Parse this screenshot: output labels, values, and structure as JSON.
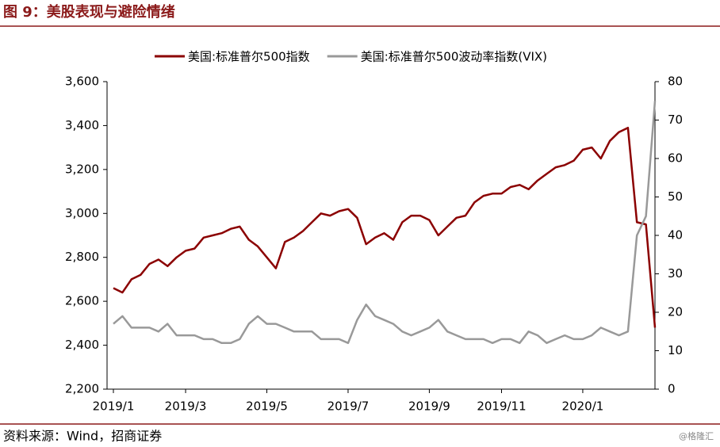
{
  "chart_data": {
    "type": "line",
    "title": "图 9：美股表现与避险情绪",
    "source": "资料来源：Wind，招商证券",
    "watermark": "@格隆汇",
    "categories": [
      "2019/1",
      null,
      null,
      null,
      null,
      null,
      null,
      null,
      "2019/3",
      null,
      null,
      null,
      null,
      null,
      null,
      null,
      null,
      "2019/5",
      null,
      null,
      null,
      null,
      null,
      null,
      null,
      null,
      "2019/7",
      null,
      null,
      null,
      null,
      null,
      null,
      null,
      null,
      "2019/9",
      null,
      null,
      null,
      null,
      null,
      null,
      null,
      "2019/11",
      null,
      null,
      null,
      null,
      null,
      null,
      null,
      null,
      "2020/1",
      null,
      null,
      null,
      null,
      null,
      null,
      null,
      null
    ],
    "series": [
      {
        "name": "美国:标准普尔500指数",
        "color": "#8b0000",
        "values": [
          2660,
          2640,
          2700,
          2720,
          2770,
          2790,
          2760,
          2800,
          2830,
          2840,
          2890,
          2900,
          2910,
          2930,
          2940,
          2880,
          2850,
          2800,
          2750,
          2870,
          2890,
          2920,
          2960,
          3000,
          2990,
          3010,
          3020,
          2980,
          2860,
          2890,
          2910,
          2880,
          2960,
          2990,
          2990,
          2970,
          2900,
          2940,
          2980,
          2990,
          3050,
          3080,
          3090,
          3090,
          3120,
          3130,
          3110,
          3150,
          3180,
          3210,
          3220,
          3240,
          3290,
          3300,
          3250,
          3330,
          3370,
          3390,
          2960,
          2950,
          2480
        ]
      },
      {
        "name": "美国:标准普尔500波动率指数(VIX)",
        "color": "#999999",
        "axis": "y2",
        "values": [
          17,
          19,
          16,
          16,
          16,
          15,
          17,
          14,
          14,
          14,
          13,
          13,
          12,
          12,
          13,
          17,
          19,
          17,
          17,
          16,
          15,
          15,
          15,
          13,
          13,
          13,
          12,
          18,
          22,
          19,
          18,
          17,
          15,
          14,
          15,
          16,
          18,
          15,
          14,
          13,
          13,
          13,
          12,
          13,
          13,
          12,
          15,
          14,
          12,
          13,
          14,
          13,
          13,
          14,
          16,
          15,
          14,
          15,
          40,
          45,
          75
        ]
      }
    ],
    "ylim": [
      2200,
      3600
    ],
    "yticks": [
      {
        "value": 2200,
        "label": "2,200"
      },
      {
        "value": 2400,
        "label": "2,400"
      },
      {
        "value": 2600,
        "label": "2,600"
      },
      {
        "value": 2800,
        "label": "2,800"
      },
      {
        "value": 3000,
        "label": "3,000"
      },
      {
        "value": 3200,
        "label": "3,200"
      },
      {
        "value": 3400,
        "label": "3,400"
      },
      {
        "value": 3600,
        "label": "3,600"
      }
    ],
    "y2lim": [
      0,
      80
    ],
    "y2ticks": [
      0,
      10,
      20,
      30,
      40,
      50,
      60,
      70,
      80
    ],
    "legend": "top"
  }
}
